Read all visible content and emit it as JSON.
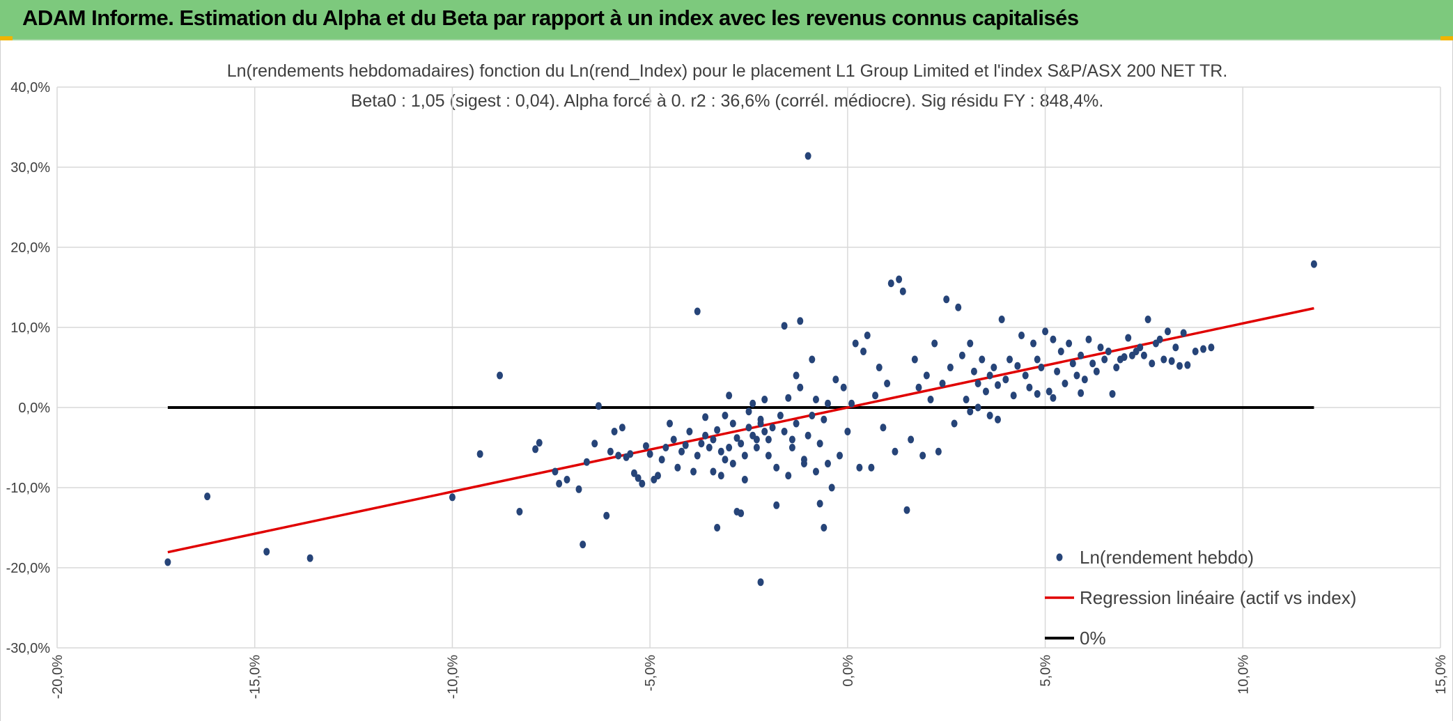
{
  "header": {
    "title": "ADAM Informe. Estimation du Alpha et du Beta par rapport à un index avec les revenus connus capitalisés"
  },
  "colors": {
    "header_bg": "#7dc97d",
    "points": "#264478",
    "regression": "#e00000",
    "zero_line": "#000000",
    "grid": "#d9d9d9"
  },
  "chart_data": {
    "type": "scatter",
    "title_line1": "Ln(rendements hebdomadaires) fonction du Ln(rend_Index) pour le placement L1 Group Limited et l'index S&P/ASX 200 NET TR.",
    "title_line2": "Beta0 : 1,05 (sigest : 0,04). Alpha forcé à 0. r2 : 36,6% (corrél. médiocre). Sig résidu FY : 848,4%.",
    "xlim": [
      -0.2,
      0.15
    ],
    "ylim": [
      -0.3,
      0.4
    ],
    "x_ticks": [
      -0.2,
      -0.15,
      -0.1,
      -0.05,
      0.0,
      0.05,
      0.1,
      0.15
    ],
    "x_tick_labels": [
      "-20,0%",
      "-15,0%",
      "-10,0%",
      "-5,0%",
      "0,0%",
      "5,0%",
      "10,0%",
      "15,0%"
    ],
    "y_ticks": [
      -0.3,
      -0.2,
      -0.1,
      0.0,
      0.1,
      0.2,
      0.3,
      0.4
    ],
    "y_tick_labels": [
      "-30,0%",
      "-20,0%",
      "-10,0%",
      "0,0%",
      "10,0%",
      "20,0%",
      "30,0%",
      "40,0%"
    ],
    "grid": true,
    "legend_position": "bottom-right",
    "legend": [
      {
        "label": "Ln(rendement hebdo)",
        "kind": "marker"
      },
      {
        "label": "Regression linéaire (actif vs index)",
        "kind": "line"
      },
      {
        "label": "0%",
        "kind": "line"
      }
    ],
    "regression": {
      "name": "Regression linéaire (actif vs index)",
      "slope": 1.05,
      "intercept": 0.0,
      "x_range": [
        -0.172,
        0.118
      ]
    },
    "zero_line": {
      "name": "0%",
      "y": 0.0,
      "x_range": [
        -0.172,
        0.118
      ]
    },
    "series": [
      {
        "name": "Ln(rendement hebdo)",
        "points": [
          [
            -0.172,
            -0.193
          ],
          [
            -0.162,
            -0.111
          ],
          [
            -0.147,
            -0.18
          ],
          [
            -0.136,
            -0.188
          ],
          [
            -0.1,
            -0.112
          ],
          [
            -0.093,
            -0.058
          ],
          [
            -0.088,
            0.04
          ],
          [
            -0.083,
            -0.13
          ],
          [
            -0.079,
            -0.052
          ],
          [
            -0.078,
            -0.044
          ],
          [
            -0.074,
            -0.08
          ],
          [
            -0.073,
            -0.095
          ],
          [
            -0.071,
            -0.09
          ],
          [
            -0.068,
            -0.102
          ],
          [
            -0.067,
            -0.171
          ],
          [
            -0.066,
            -0.068
          ],
          [
            -0.064,
            -0.045
          ],
          [
            -0.063,
            0.002
          ],
          [
            -0.061,
            -0.135
          ],
          [
            -0.06,
            -0.055
          ],
          [
            -0.059,
            -0.03
          ],
          [
            -0.058,
            -0.06
          ],
          [
            -0.057,
            -0.025
          ],
          [
            -0.056,
            -0.062
          ],
          [
            -0.055,
            -0.058
          ],
          [
            -0.054,
            -0.082
          ],
          [
            -0.053,
            -0.088
          ],
          [
            -0.052,
            -0.095
          ],
          [
            -0.051,
            -0.048
          ],
          [
            -0.05,
            -0.058
          ],
          [
            -0.049,
            -0.09
          ],
          [
            -0.048,
            -0.085
          ],
          [
            -0.047,
            -0.065
          ],
          [
            -0.046,
            -0.05
          ],
          [
            -0.045,
            -0.02
          ],
          [
            -0.044,
            -0.04
          ],
          [
            -0.043,
            -0.075
          ],
          [
            -0.042,
            -0.055
          ],
          [
            -0.041,
            -0.047
          ],
          [
            -0.04,
            -0.03
          ],
          [
            -0.039,
            -0.08
          ],
          [
            -0.038,
            -0.06
          ],
          [
            -0.037,
            -0.045
          ],
          [
            -0.036,
            -0.035
          ],
          [
            -0.035,
            -0.05
          ],
          [
            -0.034,
            -0.04
          ],
          [
            -0.033,
            -0.028
          ],
          [
            -0.032,
            -0.055
          ],
          [
            -0.031,
            -0.065
          ],
          [
            -0.03,
            -0.05
          ],
          [
            -0.029,
            -0.02
          ],
          [
            -0.028,
            -0.038
          ],
          [
            -0.027,
            -0.045
          ],
          [
            -0.026,
            -0.06
          ],
          [
            -0.025,
            -0.025
          ],
          [
            -0.024,
            -0.035
          ],
          [
            -0.023,
            -0.05
          ],
          [
            -0.022,
            -0.02
          ],
          [
            -0.021,
            -0.03
          ],
          [
            -0.02,
            -0.04
          ],
          [
            -0.038,
            0.12
          ],
          [
            -0.036,
            -0.012
          ],
          [
            -0.034,
            -0.08
          ],
          [
            -0.033,
            -0.15
          ],
          [
            -0.032,
            -0.085
          ],
          [
            -0.031,
            -0.01
          ],
          [
            -0.03,
            0.015
          ],
          [
            -0.029,
            -0.07
          ],
          [
            -0.028,
            -0.13
          ],
          [
            -0.027,
            -0.132
          ],
          [
            -0.026,
            -0.09
          ],
          [
            -0.025,
            -0.005
          ],
          [
            -0.024,
            0.005
          ],
          [
            -0.023,
            -0.04
          ],
          [
            -0.022,
            -0.015
          ],
          [
            -0.021,
            0.01
          ],
          [
            -0.02,
            -0.06
          ],
          [
            -0.019,
            -0.025
          ],
          [
            -0.018,
            -0.075
          ],
          [
            -0.017,
            -0.01
          ],
          [
            -0.016,
            -0.03
          ],
          [
            -0.015,
            0.012
          ],
          [
            -0.014,
            -0.05
          ],
          [
            -0.013,
            -0.02
          ],
          [
            -0.012,
            0.025
          ],
          [
            -0.011,
            -0.07
          ],
          [
            -0.01,
            -0.035
          ],
          [
            -0.009,
            -0.01
          ],
          [
            -0.008,
            0.01
          ],
          [
            -0.007,
            -0.045
          ],
          [
            -0.006,
            -0.015
          ],
          [
            -0.005,
            0.005
          ],
          [
            -0.022,
            -0.218
          ],
          [
            -0.018,
            -0.122
          ],
          [
            -0.016,
            0.102
          ],
          [
            -0.015,
            -0.085
          ],
          [
            -0.014,
            -0.04
          ],
          [
            -0.013,
            0.04
          ],
          [
            -0.012,
            0.108
          ],
          [
            -0.011,
            -0.065
          ],
          [
            -0.01,
            0.314
          ],
          [
            -0.009,
            0.06
          ],
          [
            -0.008,
            -0.08
          ],
          [
            -0.007,
            -0.12
          ],
          [
            -0.006,
            -0.15
          ],
          [
            -0.005,
            -0.07
          ],
          [
            -0.004,
            -0.1
          ],
          [
            -0.003,
            0.035
          ],
          [
            -0.002,
            -0.06
          ],
          [
            -0.001,
            0.025
          ],
          [
            0.0,
            -0.03
          ],
          [
            0.001,
            0.005
          ],
          [
            0.002,
            0.08
          ],
          [
            0.003,
            -0.075
          ],
          [
            0.004,
            0.07
          ],
          [
            0.005,
            0.09
          ],
          [
            0.006,
            -0.075
          ],
          [
            0.007,
            0.015
          ],
          [
            0.008,
            0.05
          ],
          [
            0.009,
            -0.025
          ],
          [
            0.01,
            0.03
          ],
          [
            0.011,
            0.155
          ],
          [
            0.012,
            -0.055
          ],
          [
            0.013,
            0.16
          ],
          [
            0.014,
            0.145
          ],
          [
            0.015,
            -0.128
          ],
          [
            0.016,
            -0.04
          ],
          [
            0.017,
            0.06
          ],
          [
            0.018,
            0.025
          ],
          [
            0.019,
            -0.06
          ],
          [
            0.02,
            0.04
          ],
          [
            0.021,
            0.01
          ],
          [
            0.022,
            0.08
          ],
          [
            0.023,
            -0.055
          ],
          [
            0.024,
            0.03
          ],
          [
            0.025,
            0.135
          ],
          [
            0.026,
            0.05
          ],
          [
            0.027,
            -0.02
          ],
          [
            0.028,
            0.125
          ],
          [
            0.029,
            0.065
          ],
          [
            0.03,
            0.01
          ],
          [
            0.031,
            0.08
          ],
          [
            0.032,
            0.045
          ],
          [
            0.033,
            0.03
          ],
          [
            0.034,
            0.06
          ],
          [
            0.035,
            0.02
          ],
          [
            0.036,
            0.04
          ],
          [
            0.037,
            0.05
          ],
          [
            0.038,
            0.028
          ],
          [
            0.039,
            0.11
          ],
          [
            0.04,
            0.035
          ],
          [
            0.041,
            0.06
          ],
          [
            0.042,
            0.015
          ],
          [
            0.043,
            0.052
          ],
          [
            0.044,
            0.09
          ],
          [
            0.045,
            0.04
          ],
          [
            0.046,
            0.025
          ],
          [
            0.047,
            0.08
          ],
          [
            0.048,
            0.06
          ],
          [
            0.049,
            0.05
          ],
          [
            0.05,
            0.095
          ],
          [
            0.051,
            0.02
          ],
          [
            0.052,
            0.085
          ],
          [
            0.053,
            0.045
          ],
          [
            0.054,
            0.07
          ],
          [
            0.055,
            0.03
          ],
          [
            0.056,
            0.08
          ],
          [
            0.057,
            0.055
          ],
          [
            0.058,
            0.04
          ],
          [
            0.059,
            0.065
          ],
          [
            0.06,
            0.035
          ],
          [
            0.061,
            0.085
          ],
          [
            0.062,
            0.055
          ],
          [
            0.063,
            0.045
          ],
          [
            0.064,
            0.075
          ],
          [
            0.065,
            0.06
          ],
          [
            0.066,
            0.07
          ],
          [
            0.067,
            0.017
          ],
          [
            0.068,
            0.05
          ],
          [
            0.069,
            0.06
          ],
          [
            0.07,
            0.063
          ],
          [
            0.071,
            0.087
          ],
          [
            0.072,
            0.065
          ],
          [
            0.073,
            0.07
          ],
          [
            0.074,
            0.075
          ],
          [
            0.075,
            0.065
          ],
          [
            0.076,
            0.11
          ],
          [
            0.077,
            0.055
          ],
          [
            0.078,
            0.08
          ],
          [
            0.079,
            0.085
          ],
          [
            0.08,
            0.06
          ],
          [
            0.081,
            0.095
          ],
          [
            0.082,
            0.058
          ],
          [
            0.083,
            0.075
          ],
          [
            0.084,
            0.052
          ],
          [
            0.085,
            0.093
          ],
          [
            0.086,
            0.053
          ],
          [
            0.088,
            0.07
          ],
          [
            0.09,
            0.073
          ],
          [
            0.092,
            0.075
          ],
          [
            0.118,
            0.179
          ],
          [
            0.048,
            0.017
          ],
          [
            0.052,
            0.012
          ],
          [
            0.059,
            0.018
          ],
          [
            0.036,
            -0.01
          ],
          [
            0.038,
            -0.015
          ],
          [
            0.033,
            0.0
          ],
          [
            0.031,
            -0.005
          ]
        ]
      }
    ]
  }
}
